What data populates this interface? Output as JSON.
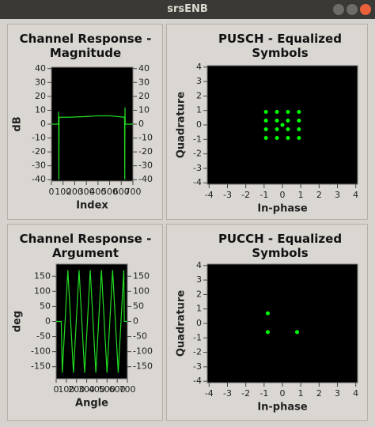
{
  "window_title": "srsENB",
  "chart_data": [
    {
      "type": "line",
      "title": "Channel Response - Magnitude",
      "xlabel": "Index",
      "ylabel": "dB",
      "color": "#22dd22",
      "x": [
        0,
        60,
        62,
        64,
        66,
        150,
        300,
        400,
        500,
        628,
        630,
        632,
        634,
        700
      ],
      "values": [
        0,
        0,
        9,
        -40,
        5,
        5,
        5.5,
        6,
        6,
        5,
        -40,
        12,
        0,
        0
      ],
      "xlim": [
        0,
        700
      ],
      "ylim": [
        -41,
        41
      ],
      "xticks": [
        0,
        100,
        200,
        300,
        400,
        500,
        600,
        700
      ],
      "yticks": [
        -40,
        -30,
        -20,
        -10,
        0,
        10,
        20,
        30,
        40
      ],
      "right_yticks": true
    },
    {
      "type": "scatter",
      "title": "PUSCH - Equalized Symbols",
      "xlabel": "In-phase",
      "ylabel": "Quadrature",
      "color": "#00ff00",
      "x": [
        -0.9,
        -0.3,
        0.3,
        0.9,
        -0.9,
        -0.3,
        0.3,
        0.9,
        -0.9,
        -0.3,
        0.3,
        0.9,
        -0.9,
        -0.3,
        0.3,
        0.9,
        0
      ],
      "values": [
        0.9,
        0.9,
        0.9,
        0.9,
        0.3,
        0.3,
        0.3,
        0.3,
        -0.3,
        -0.3,
        -0.3,
        -0.3,
        -0.9,
        -0.9,
        -0.9,
        -0.9,
        0
      ],
      "xlim": [
        -4.1,
        4.1
      ],
      "ylim": [
        -4.1,
        4.1
      ],
      "xticks": [
        -4,
        -3,
        -2,
        -1,
        0,
        1,
        2,
        3,
        4
      ],
      "yticks": [
        -4,
        -3,
        -2,
        -1,
        0,
        1,
        2,
        3,
        4
      ],
      "right_yticks": false
    },
    {
      "type": "line",
      "title": "Channel Response - Argument",
      "xlabel": "Angle",
      "ylabel": "deg",
      "color": "#22dd22",
      "x": [
        0,
        50,
        60,
        115,
        170,
        225,
        280,
        335,
        390,
        445,
        500,
        555,
        610,
        665,
        670,
        700
      ],
      "values": [
        0,
        0,
        -170,
        170,
        -170,
        170,
        -170,
        170,
        -170,
        170,
        -170,
        170,
        -170,
        170,
        0,
        0
      ],
      "xlim": [
        0,
        700
      ],
      "ylim": [
        -190,
        190
      ],
      "xticks": [
        0,
        100,
        200,
        300,
        400,
        500,
        600,
        700
      ],
      "yticks": [
        -150,
        -100,
        -50,
        0,
        50,
        100,
        150
      ],
      "right_yticks": true
    },
    {
      "type": "scatter",
      "title": "PUCCH - Equalized Symbols",
      "xlabel": "In-phase",
      "ylabel": "Quadrature",
      "color": "#00ff00",
      "x": [
        -0.8,
        -0.8,
        0.8
      ],
      "values": [
        0.7,
        -0.6,
        -0.6
      ],
      "xlim": [
        -4.1,
        4.1
      ],
      "ylim": [
        -4.1,
        4.1
      ],
      "xticks": [
        -4,
        -3,
        -2,
        -1,
        0,
        1,
        2,
        3,
        4
      ],
      "yticks": [
        -4,
        -3,
        -2,
        -1,
        0,
        1,
        2,
        3,
        4
      ],
      "right_yticks": false
    }
  ]
}
